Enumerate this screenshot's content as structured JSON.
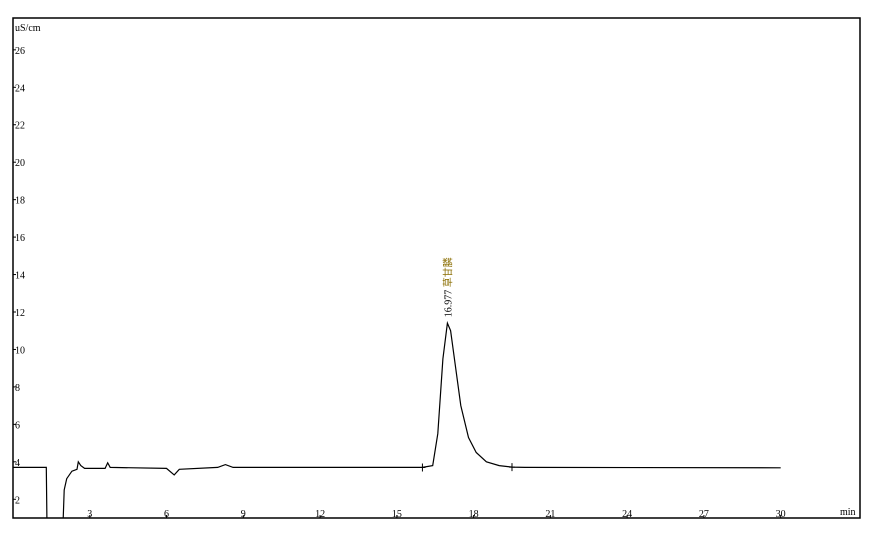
{
  "chart_data": {
    "type": "line",
    "y_unit": "uS/cm",
    "x_unit": "min",
    "x": [
      0,
      1.3,
      1.33,
      1.95,
      2.0,
      2.1,
      2.3,
      2.5,
      2.55,
      2.65,
      2.8,
      3.6,
      3.7,
      3.8,
      6.0,
      6.3,
      6.5,
      8.0,
      8.3,
      8.6,
      16.0,
      16.4,
      16.6,
      16.8,
      16.977,
      17.1,
      17.3,
      17.5,
      17.8,
      18.1,
      18.5,
      19.0,
      19.5,
      20.0,
      30.0
    ],
    "values": [
      3.7,
      3.7,
      0.5,
      0.5,
      2.5,
      3.1,
      3.5,
      3.6,
      4.0,
      3.8,
      3.65,
      3.65,
      3.95,
      3.7,
      3.65,
      3.3,
      3.6,
      3.7,
      3.85,
      3.7,
      3.7,
      3.8,
      5.5,
      9.5,
      11.4,
      11.0,
      9.0,
      7.0,
      5.3,
      4.5,
      4.0,
      3.8,
      3.72,
      3.7,
      3.68
    ],
    "color": "#000000",
    "xlim": [
      0,
      33.1
    ],
    "xticks": [
      3,
      6,
      9,
      12,
      15,
      18,
      21,
      24,
      27,
      30
    ],
    "ylim": [
      1,
      27.7
    ],
    "yticks": [
      2,
      4,
      6,
      8,
      10,
      12,
      14,
      16,
      18,
      20,
      22,
      24,
      26
    ],
    "peak_labels": [
      {
        "time": "16.977",
        "name": "草甘膦",
        "x": 16.977,
        "y": 11.4
      }
    ]
  }
}
